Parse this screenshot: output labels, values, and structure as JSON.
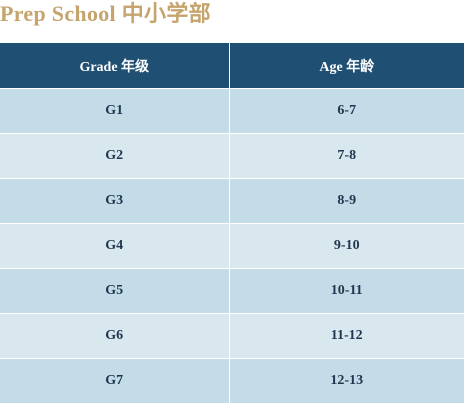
{
  "title": "Prep School 中小学部",
  "table": {
    "headers": [
      "Grade 年级",
      "Age 年龄"
    ],
    "rows": [
      {
        "grade": "G1",
        "age": "6-7"
      },
      {
        "grade": "G2",
        "age": "7-8"
      },
      {
        "grade": "G3",
        "age": "8-9"
      },
      {
        "grade": "G4",
        "age": "9-10"
      },
      {
        "grade": "G5",
        "age": "10-11"
      },
      {
        "grade": "G6",
        "age": "11-12"
      },
      {
        "grade": "G7",
        "age": "12-13"
      }
    ]
  },
  "colors": {
    "title": "#c5a46d",
    "header_bg": "#204f74",
    "header_text": "#ffffff",
    "row_odd": "#c3dce7",
    "row_even": "#d9e8ee",
    "cell_text": "#1f3550"
  }
}
